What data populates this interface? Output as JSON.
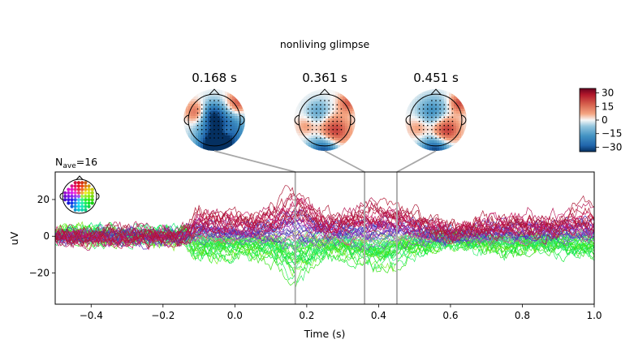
{
  "figure": {
    "title": "nonliving glimpse"
  },
  "chart_data": [
    {
      "type": "line",
      "title": "N_ave=16",
      "nave_prefix": "N",
      "nave_sub": "ave",
      "nave_value": "=16",
      "xlabel": "Time (s)",
      "ylabel": "uV",
      "xlim": [
        -0.5,
        1.0
      ],
      "ylim": [
        -37,
        35
      ],
      "x_ticks": [
        -0.4,
        -0.2,
        0.0,
        0.2,
        0.4,
        0.6,
        0.8,
        1.0
      ],
      "x_tick_labels": [
        "−0.4",
        "−0.2",
        "0.0",
        "0.2",
        "0.4",
        "0.6",
        "0.8",
        "1.0"
      ],
      "y_ticks": [
        -20,
        0,
        20
      ],
      "y_tick_labels": [
        "−20",
        "0",
        "20"
      ],
      "grid": false,
      "series_description_note": "",
      "channel_count": 59,
      "time_markers": [
        0.168,
        0.361,
        0.451
      ]
    },
    {
      "type": "heatmap",
      "subtype": "topomap",
      "times": [
        0.168,
        0.361,
        0.451
      ],
      "time_labels": [
        "0.168 s",
        "0.361 s",
        "0.451 s"
      ],
      "colorbar": {
        "cmap": "RdBu_r",
        "vmin": -35,
        "vmax": 35,
        "ticks": [
          30,
          15,
          0,
          -15,
          -30
        ],
        "tick_labels": [
          "30",
          "15",
          "0",
          "−15",
          "−30"
        ]
      }
    }
  ]
}
